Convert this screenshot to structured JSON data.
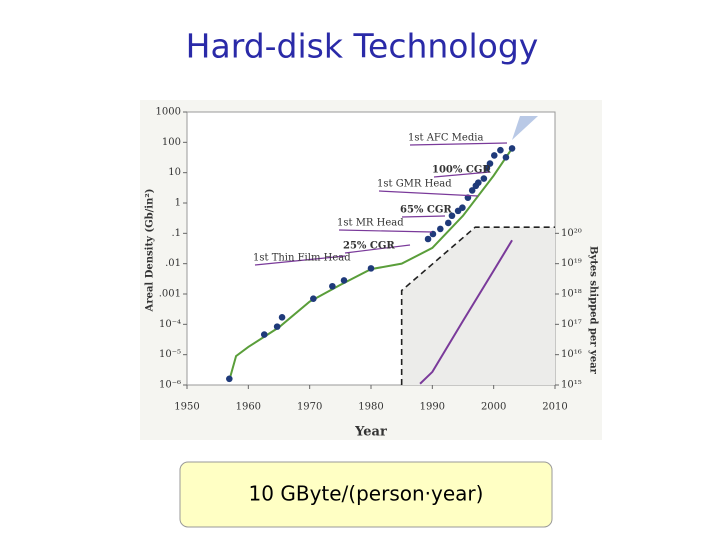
{
  "title": "Hard-disk Technology",
  "chart_data": {
    "type": "line",
    "log_scale": true,
    "grid": false,
    "xlabel": "Year",
    "ylabel": "Areal Density (Gb/in²)",
    "y2label": "Bytes shipped per year",
    "xlim": [
      1950,
      2010
    ],
    "xticks": [
      1950,
      1960,
      1970,
      1980,
      1990,
      2000,
      2010
    ],
    "ylim": [
      1e-06,
      1000
    ],
    "yticks": [
      1000,
      100,
      10,
      1,
      {
        "value": 0.1,
        "label": ".1"
      },
      {
        "value": 0.01,
        "label": ".01"
      },
      {
        "value": 0.001,
        "label": ".001"
      },
      {
        "value": 0.0001,
        "label": "10⁻⁴"
      },
      {
        "value": 1e-05,
        "label": "10⁻⁵"
      },
      {
        "value": 1e-06,
        "label": "10⁻⁶"
      }
    ],
    "y2lim": [
      1000000000000000.0,
      1e+24
    ],
    "y2ticks": [
      {
        "value": 1e+20,
        "label": "10²⁰"
      },
      {
        "value": 1e+19,
        "label": "10¹⁹"
      },
      {
        "value": 1e+18,
        "label": "10¹⁸"
      },
      {
        "value": 1e+17,
        "label": "10¹⁷"
      },
      {
        "value": 1e+16,
        "label": "10¹⁶"
      },
      {
        "value": 1000000000000000.0,
        "label": "10¹⁵"
      }
    ],
    "series": [
      {
        "color": "#c8c8c8",
        "style": "dashed-area",
        "axis": "y2",
        "x": [
          1985,
          1985,
          1997,
          2010
        ],
        "values": [
          1000000000000000.0,
          1.3e+18,
          1.6e+20,
          1.6e+20
        ]
      },
      {
        "color": "#7a3a9a",
        "style": "line",
        "axis": "y2",
        "x": [
          1988,
          1990,
          1995,
          2000,
          2003
        ],
        "values": [
          1100000000000000.0,
          2700000000000000.0,
          1.3e+17,
          5.9e+18,
          5.9e+19
        ]
      },
      {
        "color": "#5a9e3a",
        "style": "line",
        "x": [
          1957,
          1958,
          1960,
          1965,
          1970,
          1975,
          1980,
          1985,
          1990,
          1995,
          2000,
          2003
        ],
        "values": [
          1.7e-06,
          9e-06,
          1.8e-05,
          8e-05,
          0.00056,
          0.002,
          0.0066,
          0.01,
          0.033,
          0.38,
          8,
          63
        ]
      },
      {
        "color": "#1f3a7a",
        "style": "dots",
        "x": [
          1956.9,
          1962.6,
          1964.7,
          1965.5,
          1970.6,
          1973.7,
          1975.6,
          1980,
          1989.3,
          1990.1,
          1991.3,
          1992.6,
          1993.2,
          1994.2,
          1994.9,
          1995.8,
          1996.5,
          1997.1,
          1997.5,
          1998.4,
          1998.9,
          1999.4,
          2000.1,
          2001.1,
          2002,
          2003
        ],
        "values": [
          1.6e-06,
          4.6e-05,
          8.4e-05,
          0.00017,
          0.0007,
          0.0018,
          0.0028,
          0.007,
          0.065,
          0.095,
          0.14,
          0.22,
          0.38,
          0.55,
          0.7,
          1.5,
          2.6,
          3.7,
          4.7,
          6.4,
          14,
          20,
          37,
          55,
          32,
          63
        ]
      }
    ],
    "annotations": [
      "1st AFC Media",
      "100% CGR",
      "1st GMR Head",
      "65% CGR",
      "1st MR Head",
      "25% CGR",
      "1st Thin Film Head"
    ]
  },
  "footer": "10 GByte/(person·year)"
}
